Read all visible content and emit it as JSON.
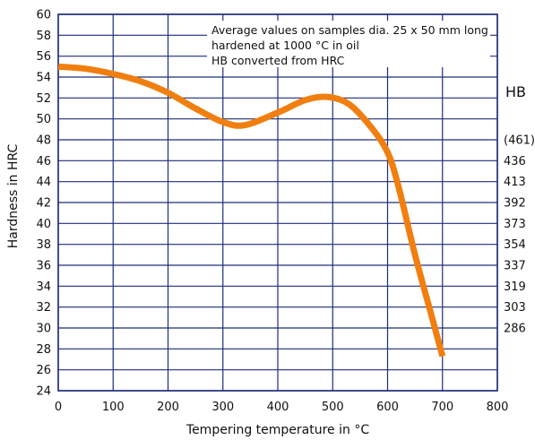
{
  "chart_data": {
    "type": "line",
    "xlabel": "Tempering temperature in °C",
    "ylabel": "Hardness in HRC",
    "xlim": [
      0,
      800
    ],
    "ylim": [
      24,
      60
    ],
    "x_ticks": [
      "0",
      "100",
      "200",
      "300",
      "400",
      "500",
      "600",
      "700",
      "800"
    ],
    "y_ticks": [
      "24",
      "26",
      "28",
      "30",
      "32",
      "34",
      "36",
      "38",
      "40",
      "42",
      "44",
      "46",
      "48",
      "50",
      "52",
      "54",
      "56",
      "58",
      "60"
    ],
    "grid": true,
    "line_color": "#f07f10",
    "grid_color": "#1f2d7a",
    "annotation": [
      "Average values on samples dia. 25 x 50 mm long",
      "hardened at 1000 °C in oil",
      "HB converted from HRC"
    ],
    "secondary_axis": {
      "title": "HB",
      "labels": [
        {
          "hrc": 48,
          "hb": "(461)"
        },
        {
          "hrc": 46,
          "hb": "436"
        },
        {
          "hrc": 44,
          "hb": "413"
        },
        {
          "hrc": 42,
          "hb": "392"
        },
        {
          "hrc": 40,
          "hb": "373"
        },
        {
          "hrc": 38,
          "hb": "354"
        },
        {
          "hrc": 36,
          "hb": "337"
        },
        {
          "hrc": 34,
          "hb": "319"
        },
        {
          "hrc": 32,
          "hb": "303"
        },
        {
          "hrc": 30,
          "hb": "286"
        }
      ]
    },
    "series": [
      {
        "x": [
          0,
          50,
          100,
          150,
          200,
          250,
          300,
          340,
          400,
          450,
          490,
          530,
          570,
          600,
          620,
          650,
          680,
          700
        ],
        "y": [
          55,
          54.8,
          54.3,
          53.6,
          52.5,
          51,
          49.7,
          49.4,
          50.6,
          51.8,
          52.1,
          51.4,
          49.2,
          46.8,
          43.5,
          37,
          31.2,
          27.3
        ]
      }
    ]
  }
}
